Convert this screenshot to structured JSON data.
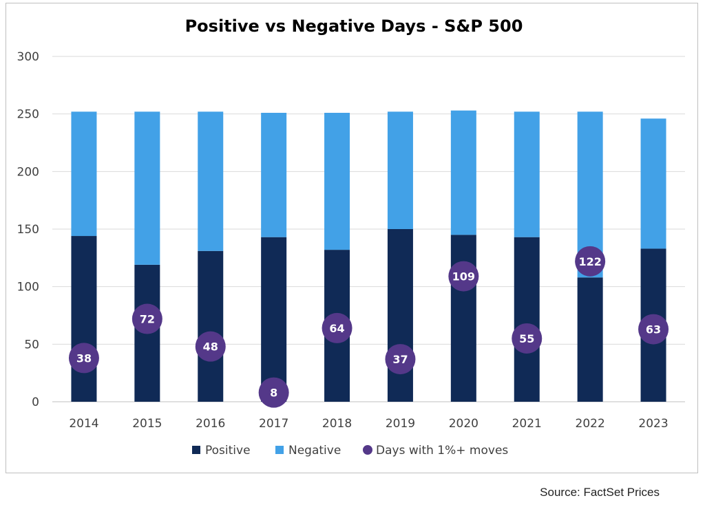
{
  "chart_data": {
    "type": "bar",
    "title": "Positive vs Negative Days - S&P 500",
    "categories": [
      "2014",
      "2015",
      "2016",
      "2017",
      "2018",
      "2019",
      "2020",
      "2021",
      "2022",
      "2023"
    ],
    "series": [
      {
        "name": "Positive",
        "kind": "stacked-bar",
        "color": "#102a56",
        "values": [
          144,
          119,
          131,
          143,
          132,
          150,
          145,
          143,
          108,
          133
        ]
      },
      {
        "name": "Negative",
        "kind": "stacked-bar",
        "color": "#42a1e7",
        "values": [
          108,
          133,
          121,
          108,
          119,
          102,
          108,
          109,
          144,
          113
        ]
      },
      {
        "name": "Days with 1%+ moves",
        "kind": "bubble",
        "color": "#543889",
        "values": [
          38,
          72,
          48,
          8,
          64,
          37,
          109,
          55,
          122,
          63
        ]
      }
    ],
    "ylim": [
      0,
      300
    ],
    "yticks": [
      0,
      50,
      100,
      150,
      200,
      250,
      300
    ],
    "grid": true,
    "legend": "bottom"
  },
  "source": "Source: FactSet Prices"
}
